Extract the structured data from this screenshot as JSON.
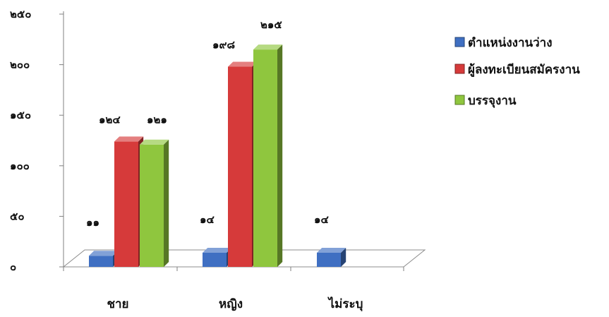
{
  "chart_data": {
    "type": "bar",
    "style": "3d-clustered-column",
    "title": "",
    "xlabel": "",
    "ylabel": "",
    "ylim": [
      0,
      250
    ],
    "yticks": [
      "๐",
      "๕๐",
      "๑๐๐",
      "๑๕๐",
      "๒๐๐",
      "๒๕๐"
    ],
    "ytick_values": [
      0,
      50,
      100,
      150,
      200,
      250
    ],
    "categories": [
      "ชาย",
      "หญิง",
      "ไม่ระบุ"
    ],
    "series": [
      {
        "name": "ตำแหน่งงานว่าง",
        "color": "#3f6fc2",
        "values": [
          11,
          14,
          14
        ],
        "labels": [
          "๑๑",
          "๑๔",
          "๑๔"
        ]
      },
      {
        "name": "ผู้ลงทะเบียนสมัครงาน",
        "color": "#d63a3a",
        "values": [
          124,
          198,
          null
        ],
        "labels": [
          "๑๒๔",
          "๑๙๘",
          ""
        ]
      },
      {
        "name": "บรรจุงาน",
        "color": "#8fc63e",
        "values": [
          121,
          215,
          null
        ],
        "labels": [
          "๑๒๑",
          "๒๑๕",
          ""
        ]
      }
    ],
    "legend_position": "right",
    "grid": false
  }
}
